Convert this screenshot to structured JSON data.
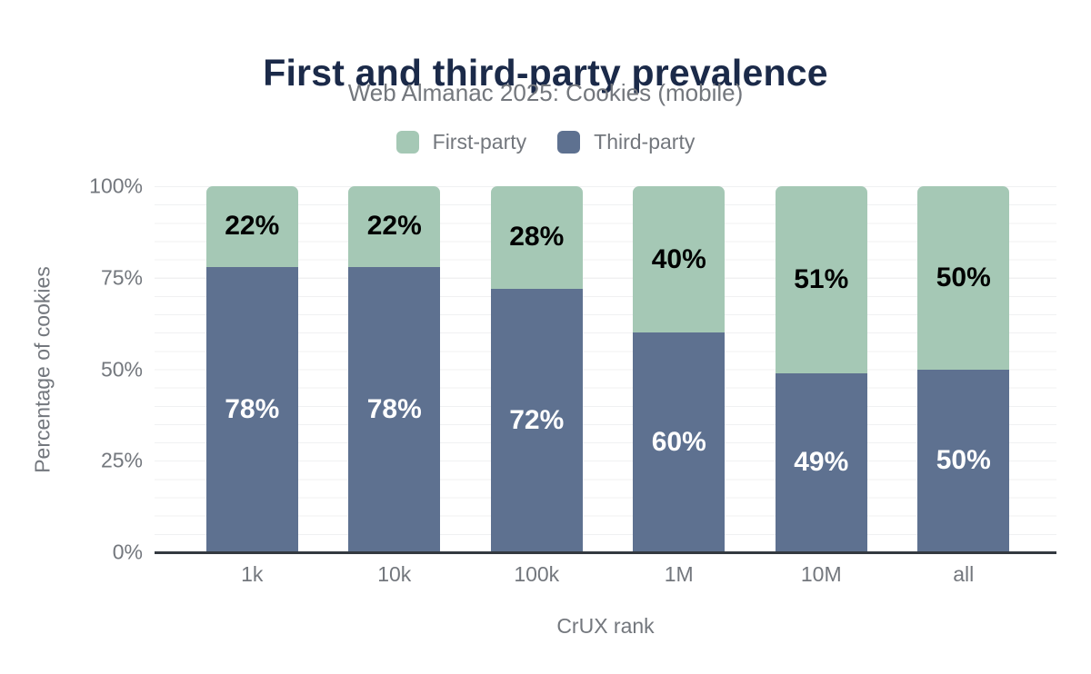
{
  "chart_data": {
    "type": "bar",
    "stacked": true,
    "title": "First and third-party prevalence",
    "subtitle": "Web Almanac 2025: Cookies (mobile)",
    "xlabel": "CrUX rank",
    "ylabel": "Percentage of cookies",
    "categories": [
      "1k",
      "10k",
      "100k",
      "1M",
      "10M",
      "all"
    ],
    "series": [
      {
        "name": "First-party",
        "color": "#a5c8b5",
        "label_color": "#000000",
        "values": [
          22,
          22,
          28,
          40,
          51,
          50
        ],
        "value_labels": [
          "22%",
          "22%",
          "28%",
          "40%",
          "51%",
          "50%"
        ]
      },
      {
        "name": "Third-party",
        "color": "#5e7190",
        "label_color": "#ffffff",
        "values": [
          78,
          78,
          72,
          60,
          49,
          50
        ],
        "value_labels": [
          "78%",
          "78%",
          "72%",
          "60%",
          "49%",
          "50%"
        ]
      }
    ],
    "ylim": [
      0,
      100
    ],
    "yticks": [
      "100%",
      "75%",
      "50%",
      "25%",
      "0%"
    ],
    "grid": "horizontal gridlines every 5%",
    "legend_position": "top",
    "legend": {
      "items": [
        {
          "label": "First-party",
          "color": "#a5c8b5"
        },
        {
          "label": "Third-party",
          "color": "#5e7190"
        }
      ]
    },
    "colors": {
      "title": "#1b2a49",
      "muted_text": "#73777d",
      "axis_line": "#333940",
      "gridline": "#f0f1f2",
      "background": "#ffffff"
    }
  }
}
